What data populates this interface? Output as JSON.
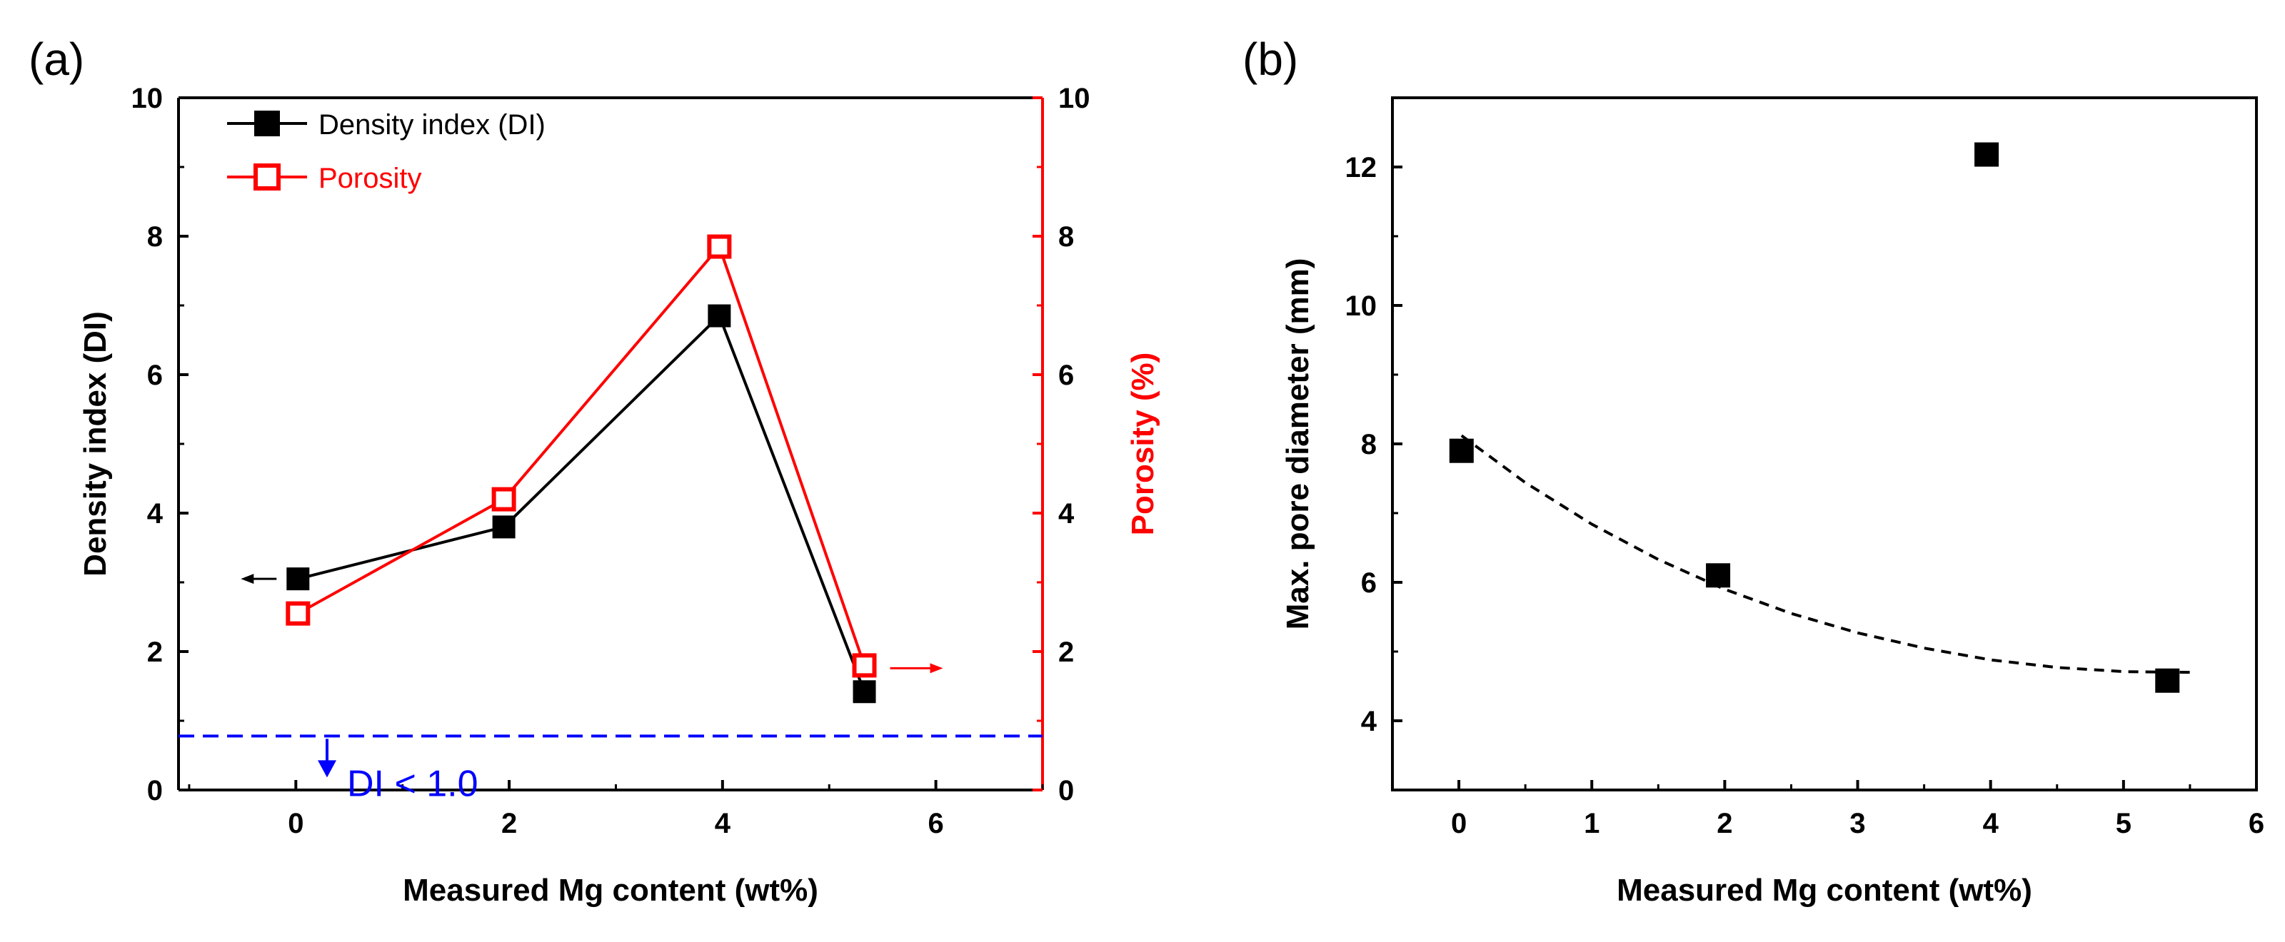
{
  "chart_data": [
    {
      "panel_label": "(a)",
      "type": "line",
      "xlabel": "Measured Mg content (wt%)",
      "ylabel": "Density index (DI)",
      "ylabel_right": "Porosity (%)",
      "xlim": [
        -1.1,
        7
      ],
      "ylim": [
        0,
        10
      ],
      "ylim_right": [
        0,
        10
      ],
      "xticks": [
        0,
        2,
        4,
        6
      ],
      "yticks": [
        0,
        2,
        4,
        6,
        8,
        10
      ],
      "yticks_right": [
        0,
        2,
        4,
        6,
        8,
        10
      ],
      "x": [
        0.02,
        1.95,
        3.97,
        5.33
      ],
      "series": [
        {
          "name": "Density index (DI)",
          "axis": "left",
          "marker": "filled-square",
          "color": "#000000",
          "values": [
            3.05,
            3.8,
            6.85,
            1.42
          ]
        },
        {
          "name": "Porosity",
          "axis": "right",
          "marker": "open-square",
          "color": "#ff0000",
          "values": [
            2.55,
            4.2,
            7.85,
            1.8
          ]
        }
      ],
      "threshold": {
        "y": 0.78,
        "label": "DI < 1.0",
        "color": "#0000ff",
        "style": "dashed"
      },
      "legend_position": "top-left"
    },
    {
      "panel_label": "(b)",
      "type": "scatter",
      "xlabel": "Measured Mg content (wt%)",
      "ylabel": "Max. pore diameter (mm)",
      "xlim": [
        -0.5,
        6
      ],
      "ylim": [
        3,
        13
      ],
      "xticks": [
        0,
        1,
        2,
        3,
        4,
        5,
        6
      ],
      "yticks": [
        4,
        6,
        8,
        10,
        12
      ],
      "points": [
        {
          "x": 0.02,
          "y": 7.9
        },
        {
          "x": 1.95,
          "y": 6.1
        },
        {
          "x": 3.97,
          "y": 12.18
        },
        {
          "x": 5.33,
          "y": 4.58
        }
      ],
      "trendline": {
        "style": "dashed",
        "color": "#000000",
        "x": [
          0.02,
          0.5,
          1,
          1.5,
          2,
          2.5,
          3,
          3.5,
          4,
          4.5,
          5,
          5.5
        ],
        "y": [
          8.12,
          7.44,
          6.84,
          6.33,
          5.9,
          5.55,
          5.27,
          5.05,
          4.88,
          4.77,
          4.71,
          4.7
        ]
      }
    }
  ]
}
